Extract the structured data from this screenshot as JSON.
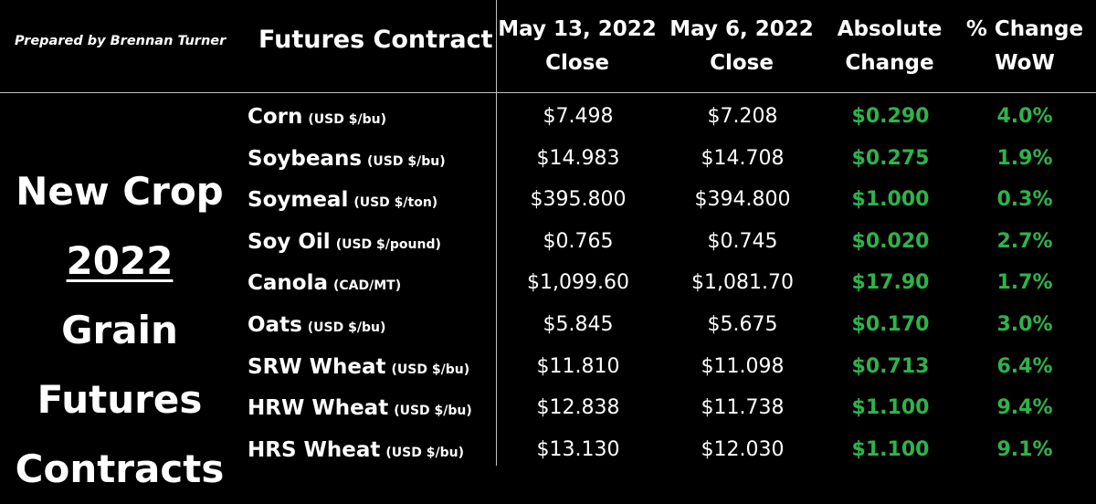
{
  "credit": "Prepared by Brennan Turner",
  "side_title": {
    "line1": "New Crop",
    "line2_underlined": "2022",
    "line2_rest": " Grain",
    "line3": "Futures",
    "line4": "Contracts"
  },
  "headers": {
    "contract": "Futures Contract",
    "may13_l1": "May 13, 2022",
    "may13_l2": "Close",
    "may6_l1": "May 6, 2022",
    "may6_l2": "Close",
    "abs_l1": "Absolute",
    "abs_l2": "Change",
    "pct_l1": "% Change",
    "pct_l2": "WoW"
  },
  "colors": {
    "background": "#000000",
    "text": "#ffffff",
    "positive": "#2eb34a",
    "rule": "#bfbfbf"
  },
  "chart_data": {
    "type": "table",
    "columns": [
      "Futures Contract",
      "May 13, 2022 Close",
      "May 6, 2022 Close",
      "Absolute Change",
      "% Change WoW"
    ],
    "rows": [
      {
        "name": "Corn",
        "unit": "(USD $/bu)",
        "may13": "$7.498",
        "may6": "$7.208",
        "abs": "$0.290",
        "pct": "4.0%"
      },
      {
        "name": "Soybeans",
        "unit": "(USD $/bu)",
        "may13": "$14.983",
        "may6": "$14.708",
        "abs": "$0.275",
        "pct": "1.9%"
      },
      {
        "name": "Soymeal",
        "unit": "(USD $/ton)",
        "may13": "$395.800",
        "may6": "$394.800",
        "abs": "$1.000",
        "pct": "0.3%"
      },
      {
        "name": "Soy Oil",
        "unit": "(USD $/pound)",
        "may13": "$0.765",
        "may6": "$0.745",
        "abs": "$0.020",
        "pct": "2.7%"
      },
      {
        "name": "Canola",
        "unit": "(CAD/MT)",
        "may13": "$1,099.60",
        "may6": "$1,081.70",
        "abs": "$17.90",
        "pct": "1.7%"
      },
      {
        "name": "Oats",
        "unit": "(USD $/bu)",
        "may13": "$5.845",
        "may6": "$5.675",
        "abs": "$0.170",
        "pct": "3.0%"
      },
      {
        "name": "SRW Wheat",
        "unit": "(USD $/bu)",
        "may13": "$11.810",
        "may6": "$11.098",
        "abs": "$0.713",
        "pct": "6.4%"
      },
      {
        "name": "HRW Wheat",
        "unit": "(USD $/bu)",
        "may13": "$12.838",
        "may6": "$11.738",
        "abs": "$1.100",
        "pct": "9.4%"
      },
      {
        "name": "HRS Wheat",
        "unit": "(USD $/bu)",
        "may13": "$13.130",
        "may6": "$12.030",
        "abs": "$1.100",
        "pct": "9.1%"
      }
    ]
  }
}
